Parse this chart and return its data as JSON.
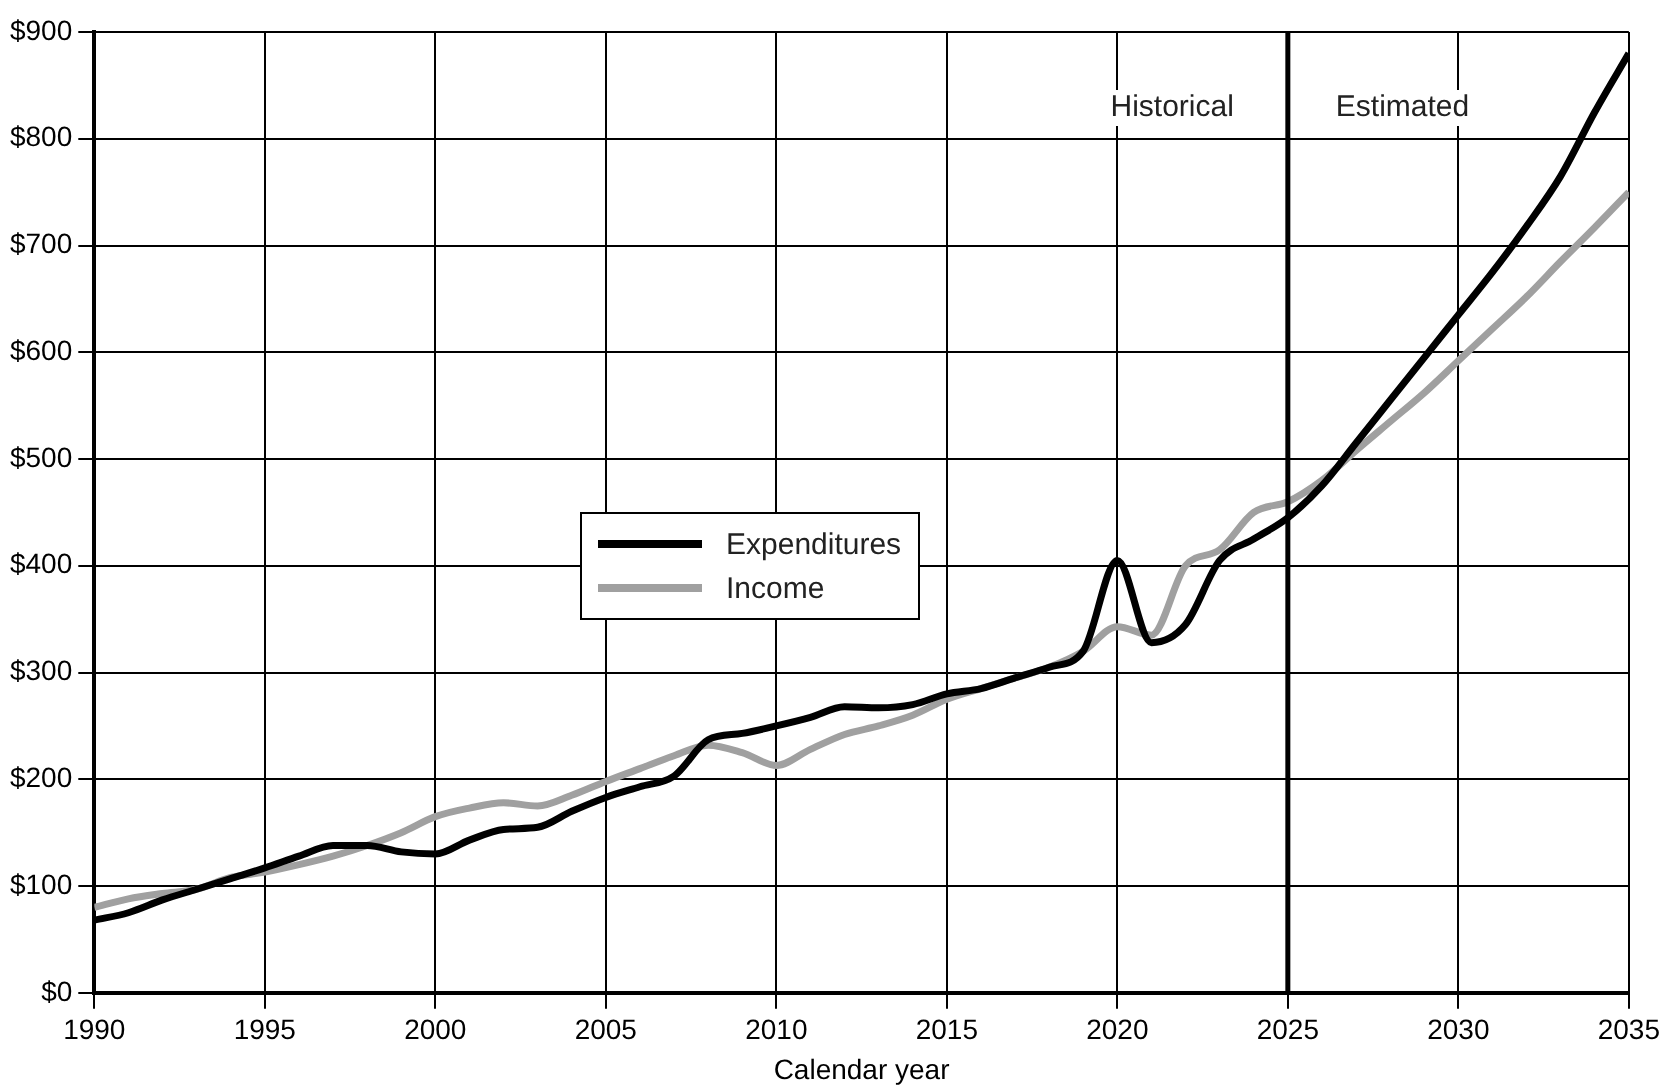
{
  "chart_data": {
    "type": "line",
    "xlabel": "Calendar year",
    "x": [
      1990,
      1991,
      1992,
      1993,
      1994,
      1995,
      1996,
      1997,
      1998,
      1999,
      2000,
      2001,
      2002,
      2003,
      2004,
      2005,
      2006,
      2007,
      2008,
      2009,
      2010,
      2011,
      2012,
      2013,
      2014,
      2015,
      2016,
      2017,
      2018,
      2019,
      2020,
      2021,
      2022,
      2023,
      2024,
      2025,
      2026,
      2027,
      2028,
      2029,
      2030,
      2031,
      2032,
      2033,
      2034,
      2035
    ],
    "series": [
      {
        "name": "Expenditures",
        "color": "#000000",
        "values": [
          68,
          75,
          87,
          97,
          107,
          117,
          128,
          138,
          138,
          132,
          130,
          143,
          153,
          155,
          170,
          183,
          193,
          203,
          237,
          243,
          250,
          258,
          268,
          267,
          270,
          280,
          285,
          295,
          305,
          320,
          405,
          328,
          345,
          405,
          425,
          445,
          475,
          515,
          555,
          595,
          635,
          675,
          718,
          765,
          825,
          880
        ]
      },
      {
        "name": "Income",
        "color": "#a0a0a0",
        "values": [
          80,
          88,
          93,
          97,
          108,
          113,
          120,
          128,
          138,
          150,
          165,
          173,
          178,
          175,
          185,
          198,
          210,
          222,
          232,
          225,
          213,
          228,
          242,
          250,
          260,
          275,
          285,
          295,
          305,
          320,
          343,
          335,
          400,
          415,
          450,
          460,
          480,
          508,
          535,
          562,
          592,
          622,
          652,
          685,
          717,
          750
        ]
      }
    ],
    "xlim": [
      1990,
      2035
    ],
    "xticks": [
      1990,
      1995,
      2000,
      2005,
      2010,
      2015,
      2020,
      2025,
      2030,
      2035
    ],
    "ylim": [
      0,
      900
    ],
    "yticks": [
      {
        "value": 0,
        "label": "$0"
      },
      {
        "value": 100,
        "label": "$100"
      },
      {
        "value": 200,
        "label": "$200"
      },
      {
        "value": 300,
        "label": "$300"
      },
      {
        "value": 400,
        "label": "$400"
      },
      {
        "value": 500,
        "label": "$500"
      },
      {
        "value": 600,
        "label": "$600"
      },
      {
        "value": 700,
        "label": "$700"
      },
      {
        "value": 800,
        "label": "$800"
      },
      {
        "value": 900,
        "label": "$900"
      }
    ],
    "ref_lines": [
      {
        "axis": "x",
        "value": 2025,
        "color": "#000000"
      }
    ],
    "annotations": [
      "Historical",
      "Estimated"
    ],
    "grid": true,
    "legend": "left",
    "marker": "none",
    "line_style": "solid"
  }
}
